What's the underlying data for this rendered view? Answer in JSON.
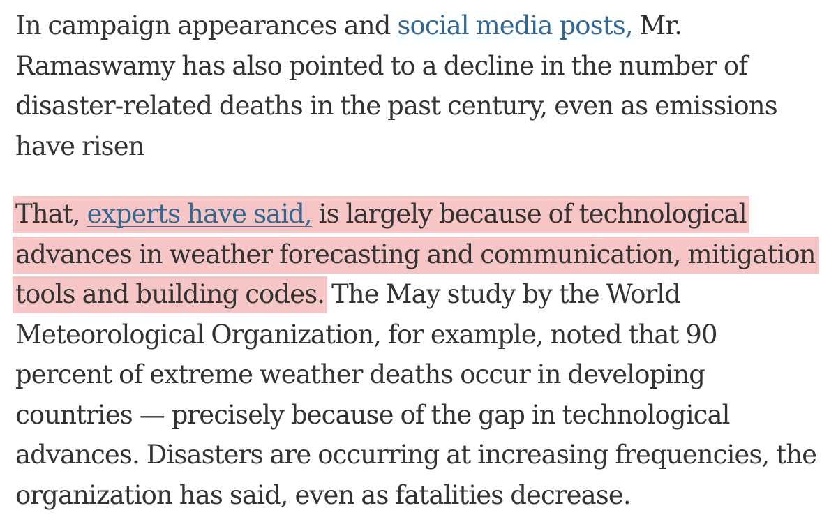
{
  "article": {
    "paragraph_1": {
      "text_before_link": "In campaign appearances and ",
      "link_text": "social media posts,",
      "text_after_link": " Mr. Ramaswamy has also pointed to a decline in the number of disaster-related deaths in the past century, even as emissions have risen"
    },
    "paragraph_2": {
      "highlight_text_before_link": "That, ",
      "link_text": "experts have said,",
      "highlight_text_after_link": " is largely because of technological advances in weather forecasting and communication, mitigation tools and building codes.",
      "text_after_highlight": " The May study by the World Meteorological Organization, for example, noted that 90 percent of extreme weather deaths occur in developing countries — precisely because of the gap in technological advances. Disasters are occurring at increasing frequencies, the organization has said, even as fatalities decrease."
    },
    "colors": {
      "text": "#333333",
      "link": "#326891",
      "highlight": "#f6c6c7",
      "background": "#ffffff"
    }
  }
}
